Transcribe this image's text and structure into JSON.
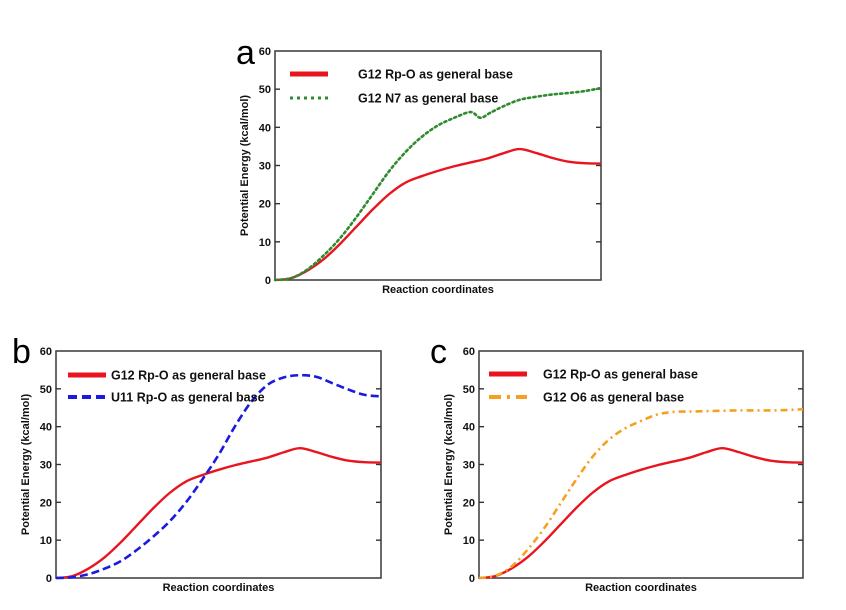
{
  "chart_data": [
    {
      "panel": "a",
      "type": "line",
      "title": "",
      "xlabel": "Reaction coordinates",
      "ylabel": "Potential Energy (kcal/mol)",
      "ylim": [
        0,
        60
      ],
      "xlim": [
        0,
        1
      ],
      "yticks": [
        0,
        10,
        20,
        30,
        40,
        50,
        60
      ],
      "grid": false,
      "legend": "top-left",
      "series": [
        {
          "name": "G12 Rp-O as general base",
          "color": "#e8141e",
          "style": "solid",
          "x": [
            0,
            0.05,
            0.1,
            0.15,
            0.2,
            0.25,
            0.3,
            0.35,
            0.4,
            0.45,
            0.5,
            0.55,
            0.6,
            0.65,
            0.7,
            0.75,
            0.8,
            0.85,
            0.9,
            0.95,
            1.0
          ],
          "y": [
            0,
            0.5,
            2.5,
            5.5,
            9.5,
            14,
            18.5,
            22.5,
            25.5,
            27.2,
            28.6,
            29.8,
            30.8,
            31.8,
            33.2,
            34.3,
            33.3,
            32.0,
            31.0,
            30.6,
            30.5
          ]
        },
        {
          "name": "G12 N7 as general base",
          "color": "#2e8b2e",
          "style": "dotted",
          "x": [
            0,
            0.05,
            0.1,
            0.15,
            0.2,
            0.25,
            0.3,
            0.35,
            0.4,
            0.45,
            0.5,
            0.55,
            0.6,
            0.63,
            0.66,
            0.7,
            0.75,
            0.8,
            0.85,
            0.9,
            0.95,
            1.0
          ],
          "y": [
            0,
            0.5,
            2.8,
            6.5,
            11,
            16.5,
            22.5,
            28.5,
            33.5,
            37.5,
            40.5,
            42.5,
            44,
            42.5,
            43.8,
            45.5,
            47.2,
            48.0,
            48.6,
            49.0,
            49.5,
            50.3
          ]
        }
      ]
    },
    {
      "panel": "b",
      "type": "line",
      "title": "",
      "xlabel": "Reaction coordinates",
      "ylabel": "Potential Energy (kcal/mol)",
      "ylim": [
        0,
        60
      ],
      "xlim": [
        0,
        1
      ],
      "yticks": [
        0,
        10,
        20,
        30,
        40,
        50,
        60
      ],
      "grid": false,
      "legend": "top-left",
      "series": [
        {
          "name": "G12 Rp-O as general base",
          "color": "#e8141e",
          "style": "solid",
          "x": [
            0,
            0.05,
            0.1,
            0.15,
            0.2,
            0.25,
            0.3,
            0.35,
            0.4,
            0.45,
            0.5,
            0.55,
            0.6,
            0.65,
            0.7,
            0.75,
            0.8,
            0.85,
            0.9,
            0.95,
            1.0
          ],
          "y": [
            0,
            0.5,
            2.5,
            5.5,
            9.5,
            14,
            18.5,
            22.5,
            25.5,
            27.2,
            28.6,
            29.8,
            30.8,
            31.8,
            33.2,
            34.3,
            33.3,
            32.0,
            31.0,
            30.6,
            30.5
          ]
        },
        {
          "name": "U11 Rp-O as general base",
          "color": "#1a1ae0",
          "style": "dashed",
          "x": [
            0,
            0.05,
            0.1,
            0.15,
            0.2,
            0.25,
            0.3,
            0.35,
            0.4,
            0.45,
            0.5,
            0.55,
            0.6,
            0.65,
            0.7,
            0.75,
            0.8,
            0.85,
            0.9,
            0.95,
            1.0
          ],
          "y": [
            0,
            0.2,
            1.0,
            2.5,
            4.5,
            7.5,
            11,
            15,
            20,
            26,
            32.5,
            40,
            46.5,
            51,
            53,
            53.6,
            53.2,
            51.5,
            49.8,
            48.4,
            48.0
          ]
        }
      ]
    },
    {
      "panel": "c",
      "type": "line",
      "title": "",
      "xlabel": "Reaction coordinates",
      "ylabel": "Potential Energy (kcal/mol)",
      "ylim": [
        0,
        60
      ],
      "xlim": [
        0,
        1
      ],
      "yticks": [
        0,
        10,
        20,
        30,
        40,
        50,
        60
      ],
      "grid": false,
      "legend": "top-left",
      "series": [
        {
          "name": "G12 Rp-O as general base",
          "color": "#e8141e",
          "style": "solid",
          "x": [
            0,
            0.05,
            0.1,
            0.15,
            0.2,
            0.25,
            0.3,
            0.35,
            0.4,
            0.45,
            0.5,
            0.55,
            0.6,
            0.65,
            0.7,
            0.75,
            0.8,
            0.85,
            0.9,
            0.95,
            1.0
          ],
          "y": [
            0,
            0.5,
            2.5,
            5.5,
            9.5,
            14,
            18.5,
            22.5,
            25.5,
            27.2,
            28.6,
            29.8,
            30.8,
            31.8,
            33.2,
            34.3,
            33.3,
            32.0,
            31.0,
            30.6,
            30.5
          ]
        },
        {
          "name": "G12 O6 as general base",
          "color": "#f5a020",
          "style": "dashdot",
          "x": [
            0,
            0.05,
            0.1,
            0.15,
            0.2,
            0.25,
            0.3,
            0.35,
            0.4,
            0.45,
            0.5,
            0.55,
            0.6,
            0.65,
            0.7,
            0.75,
            0.8,
            0.85,
            0.9,
            0.95,
            1.0
          ],
          "y": [
            0,
            0.6,
            3.0,
            7.5,
            13,
            19.5,
            26,
            32,
            36.5,
            39.5,
            41.5,
            43.2,
            43.9,
            44.0,
            44.1,
            44.2,
            44.3,
            44.3,
            44.3,
            44.4,
            44.6
          ]
        }
      ]
    }
  ]
}
